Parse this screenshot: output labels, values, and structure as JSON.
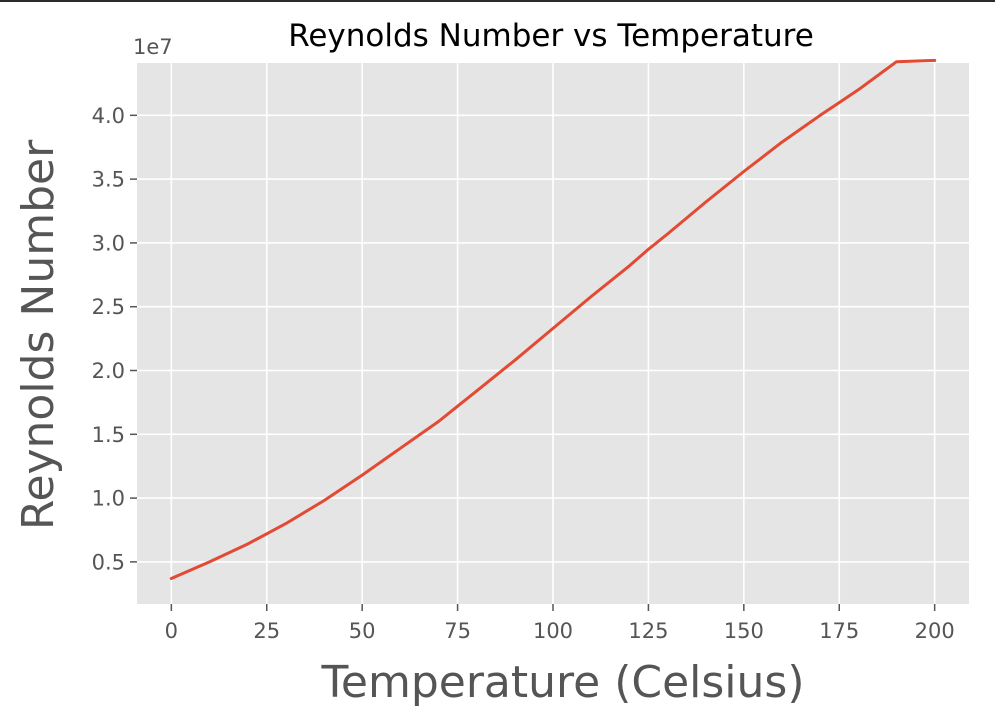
{
  "chart_data": {
    "type": "line",
    "title": "Reynolds Number vs Temperature",
    "xlabel": "Temperature (Celsius)",
    "ylabel": "Reynolds Number",
    "y_offset_label": "1e7",
    "xlim": [
      -9,
      209
    ],
    "ylim": [
      0.17,
      4.41
    ],
    "x_ticks": [
      0,
      25,
      50,
      75,
      100,
      125,
      150,
      175,
      200
    ],
    "x_tick_labels": [
      "0",
      "25",
      "50",
      "75",
      "100",
      "125",
      "150",
      "175",
      "200"
    ],
    "y_ticks": [
      0.5,
      1.0,
      1.5,
      2.0,
      2.5,
      3.0,
      3.5,
      4.0
    ],
    "y_tick_labels": [
      "0.5",
      "1.0",
      "1.5",
      "2.0",
      "2.5",
      "3.0",
      "3.5",
      "4.0"
    ],
    "grid": true,
    "series": [
      {
        "x": [
          0,
          10,
          20,
          25,
          30,
          40,
          50,
          60,
          70,
          75,
          80,
          90,
          100,
          110,
          120,
          125,
          130,
          140,
          150,
          160,
          170,
          175,
          180,
          190,
          200
        ],
        "y": [
          0.37,
          0.5,
          0.64,
          0.72,
          0.8,
          0.98,
          1.18,
          1.39,
          1.6,
          1.72,
          1.84,
          2.08,
          2.33,
          2.58,
          2.82,
          2.95,
          3.07,
          3.32,
          3.56,
          3.79,
          4.0,
          4.1,
          4.2,
          4.42,
          4.43
        ],
        "color": "#E24A33"
      }
    ],
    "colors": {
      "plot_background": "#E5E5E5",
      "grid": "#FFFFFF",
      "text": "#555555",
      "title_text": "#000000"
    }
  }
}
